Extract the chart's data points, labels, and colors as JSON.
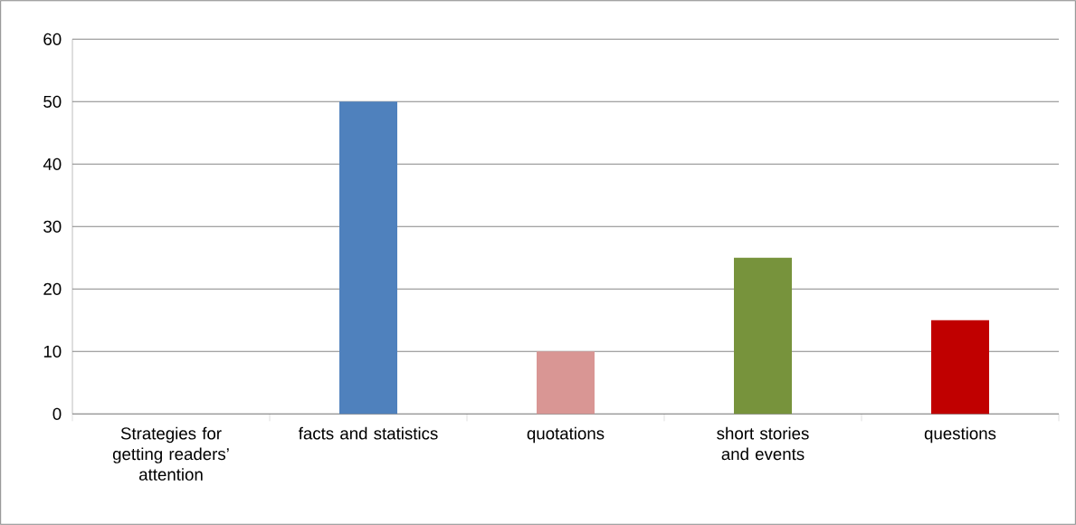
{
  "chart_data": {
    "type": "bar",
    "categories": [
      "Strategies for getting readers’ attention",
      "facts and statistics",
      "quotations",
      "short stories and events",
      "questions"
    ],
    "values": [
      null,
      50,
      10,
      25,
      15
    ],
    "colors": [
      "#4f81bd",
      "#4f81bd",
      "#d99694",
      "#77933c",
      "#c00000"
    ],
    "ylim": [
      0,
      60
    ],
    "yticks": [
      0,
      10,
      20,
      30,
      40,
      50,
      60
    ],
    "grid": "y"
  }
}
